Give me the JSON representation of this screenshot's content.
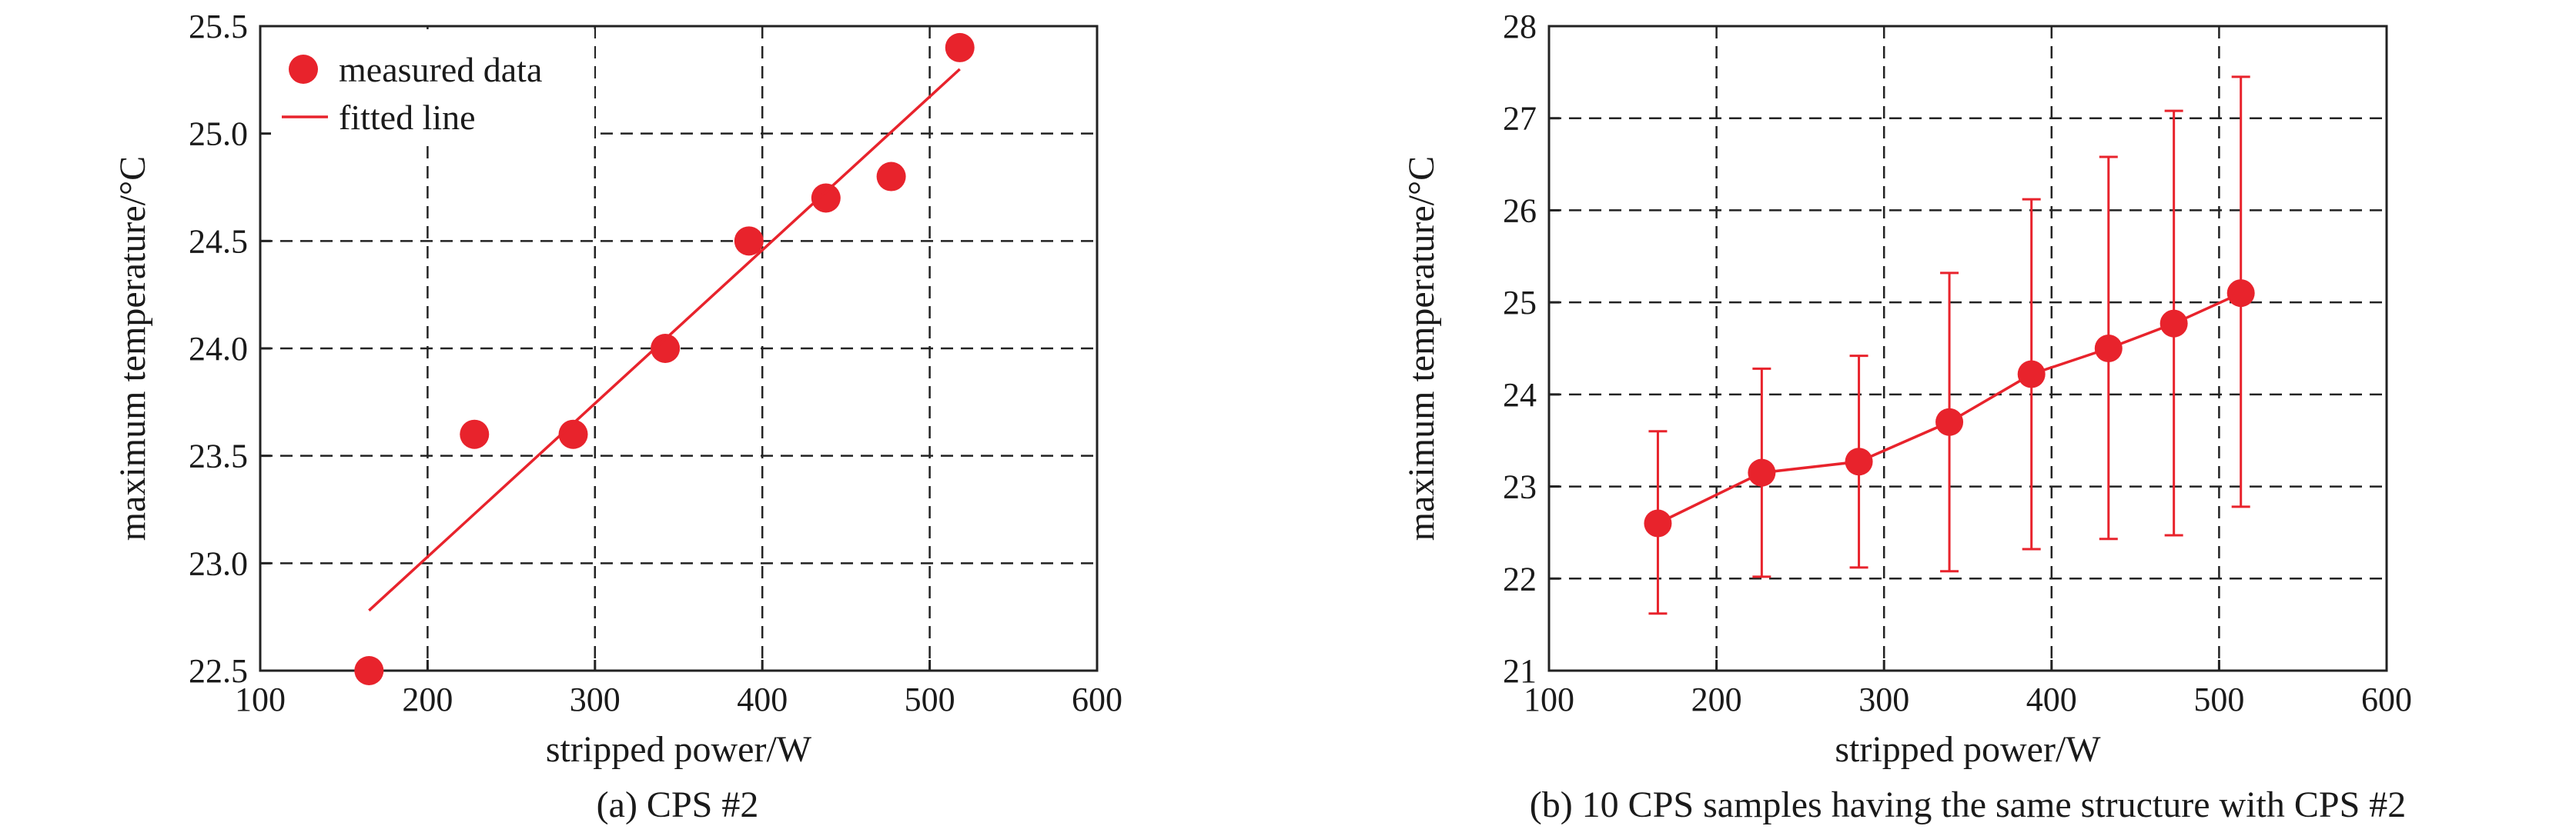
{
  "chart_data": [
    {
      "type": "scatter",
      "caption": "(a) CPS #2",
      "xlabel": "stripped power/W",
      "ylabel": "maximum temperature/°C",
      "xlim": [
        100,
        600
      ],
      "ylim": [
        22.5,
        25.5
      ],
      "xticks": [
        "100",
        "200",
        "300",
        "400",
        "500",
        "600"
      ],
      "yticks": [
        "22.5",
        "23.0",
        "23.5",
        "24.0",
        "24.5",
        "25.0",
        "25.5"
      ],
      "grid": true,
      "legend": {
        "placement": "top-left",
        "entries": [
          "measured data",
          "fitted line"
        ]
      },
      "series": [
        {
          "name": "measured data",
          "kind": "points",
          "color": "#e8232c",
          "x": [
            165,
            228,
            287,
            342,
            392,
            438,
            477,
            518
          ],
          "y": [
            22.5,
            23.6,
            23.6,
            24.0,
            24.5,
            24.7,
            24.8,
            25.4
          ]
        },
        {
          "name": "fitted line",
          "kind": "line",
          "color": "#e8232c",
          "x": [
            165,
            518
          ],
          "y": [
            22.78,
            25.3
          ]
        }
      ]
    },
    {
      "type": "line",
      "caption": "(b) 10 CPS samples having the same structure with CPS #2",
      "xlabel": "stripped power/W",
      "ylabel": "maximum temperature/°C",
      "xlim": [
        100,
        600
      ],
      "ylim": [
        21,
        28
      ],
      "xticks": [
        "100",
        "200",
        "300",
        "400",
        "500",
        "600"
      ],
      "yticks": [
        "21",
        "22",
        "23",
        "24",
        "25",
        "26",
        "27",
        "28"
      ],
      "grid": true,
      "series": [
        {
          "kind": "line-points-errorbars",
          "color": "#e8232c",
          "x": [
            165,
            227,
            285,
            339,
            388,
            434,
            473,
            513
          ],
          "y": [
            22.6,
            23.15,
            23.27,
            23.7,
            24.22,
            24.5,
            24.77,
            25.1
          ],
          "err_low": [
            21.62,
            22.02,
            22.12,
            22.08,
            22.32,
            22.43,
            22.47,
            22.78
          ],
          "err_high": [
            23.6,
            24.28,
            24.42,
            25.32,
            26.12,
            26.58,
            27.08,
            27.45
          ]
        }
      ]
    }
  ]
}
